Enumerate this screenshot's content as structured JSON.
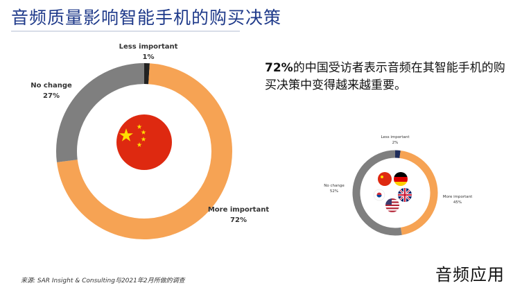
{
  "title": "音频质量影响智能手机的购买决策",
  "statement": {
    "percent": "72%",
    "text": "的中国受访者表示音频在其智能手机的购买决策中变得越来越重要。"
  },
  "chart_data": [
    {
      "type": "pie",
      "variant": "donut",
      "segments": [
        {
          "label": "Less important",
          "value": 1,
          "value_label": "1%",
          "color": "#222222"
        },
        {
          "label": "More important",
          "value": 72,
          "value_label": "72%",
          "color": "#f6a354"
        },
        {
          "label": "No change",
          "value": 27,
          "value_label": "27%",
          "color": "#7f7f7f"
        }
      ],
      "center_icon": "china-flag-icon"
    },
    {
      "type": "pie",
      "variant": "donut",
      "segments": [
        {
          "label": "Less important",
          "value": 2,
          "value_label": "2%",
          "color": "#1f2d5a"
        },
        {
          "label": "More important",
          "value": 45,
          "value_label": "45%",
          "color": "#f6a354"
        },
        {
          "label": "No change",
          "value": 52,
          "value_label": "52%",
          "color": "#7f7f7f"
        }
      ],
      "center_icons": [
        "china-flag-icon",
        "germany-flag-icon",
        "korea-flag-icon",
        "uk-flag-icon",
        "usa-flag-icon"
      ]
    }
  ],
  "source": "来源: SAR Insight & Consulting与2021年2月所做的调查",
  "watermark": "音频应用"
}
